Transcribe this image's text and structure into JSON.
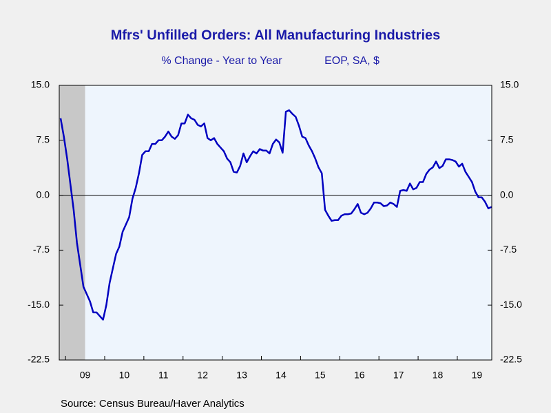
{
  "chart_data": {
    "type": "line",
    "title": "Mfrs' Unfilled Orders: All Manufacturing Industries",
    "subtitle": "% Change - Year to Year",
    "units": "EOP, SA, $",
    "source": "Source:  Census Bureau/Haver Analytics",
    "color": "#0000c0",
    "x": [
      2008.875,
      2008.958,
      2009.042,
      2009.125,
      2009.208,
      2009.292,
      2009.375,
      2009.458,
      2009.542,
      2009.625,
      2009.708,
      2009.792,
      2009.875,
      2009.958,
      2010.042,
      2010.125,
      2010.208,
      2010.292,
      2010.375,
      2010.458,
      2010.542,
      2010.625,
      2010.708,
      2010.792,
      2010.875,
      2010.958,
      2011.042,
      2011.125,
      2011.208,
      2011.292,
      2011.375,
      2011.458,
      2011.542,
      2011.625,
      2011.708,
      2011.792,
      2011.875,
      2011.958,
      2012.042,
      2012.125,
      2012.208,
      2012.292,
      2012.375,
      2012.458,
      2012.542,
      2012.625,
      2012.708,
      2012.792,
      2012.875,
      2012.958,
      2013.042,
      2013.125,
      2013.208,
      2013.292,
      2013.375,
      2013.458,
      2013.542,
      2013.625,
      2013.708,
      2013.792,
      2013.875,
      2013.958,
      2014.042,
      2014.125,
      2014.208,
      2014.292,
      2014.375,
      2014.458,
      2014.542,
      2014.625,
      2014.708,
      2014.792,
      2014.875,
      2014.958,
      2015.042,
      2015.125,
      2015.208,
      2015.292,
      2015.375,
      2015.458,
      2015.542,
      2015.625,
      2015.708,
      2015.792,
      2015.875,
      2015.958,
      2016.042,
      2016.125,
      2016.208,
      2016.292,
      2016.375,
      2016.458,
      2016.542,
      2016.625,
      2016.708,
      2016.792,
      2016.875,
      2016.958,
      2017.042,
      2017.125,
      2017.208,
      2017.292,
      2017.375,
      2017.458,
      2017.542,
      2017.625,
      2017.708,
      2017.792,
      2017.875,
      2017.958,
      2018.042,
      2018.125,
      2018.208,
      2018.292,
      2018.375,
      2018.458,
      2018.542,
      2018.625,
      2018.708,
      2018.792,
      2018.875,
      2018.958,
      2019.042,
      2019.125,
      2019.208,
      2019.292,
      2019.375,
      2019.458,
      2019.542,
      2019.625,
      2019.708,
      2019.792,
      2019.875
    ],
    "values": [
      10.5,
      8.0,
      5,
      1.5,
      -2,
      -6.5,
      -9.5,
      -12.5,
      -13.5,
      -14.5,
      -16,
      -16,
      -16.5,
      -17,
      -15,
      -12,
      -10,
      -8,
      -7,
      -5,
      -4,
      -3,
      -0.5,
      1,
      3,
      5.5,
      6,
      6,
      7,
      7,
      7.5,
      7.5,
      8,
      8.7,
      8,
      7.7,
      8.2,
      9.8,
      9.8,
      11,
      10.5,
      10.3,
      9.6,
      9.4,
      9.8,
      7.8,
      7.5,
      7.8,
      7,
      6.5,
      6,
      5,
      4.5,
      3.2,
      3.1,
      4,
      5.7,
      4.5,
      5.3,
      6,
      5.7,
      6.3,
      6.1,
      6.1,
      5.7,
      7,
      7.6,
      7.2,
      5.8,
      11.4,
      11.6,
      11.1,
      10.7,
      9.5,
      8,
      7.8,
      6.8,
      6,
      5,
      3.8,
      3,
      -2,
      -2.8,
      -3.5,
      -3.4,
      -3.4,
      -2.8,
      -2.6,
      -2.6,
      -2.5,
      -1.9,
      -1.2,
      -2.4,
      -2.6,
      -2.4,
      -1.8,
      -1.0,
      -1.0,
      -1.1,
      -1.5,
      -1.4,
      -1.0,
      -1.2,
      -1.6,
      0.6,
      0.7,
      0.6,
      1.6,
      0.8,
      1.0,
      1.8,
      1.8,
      2.9,
      3.5,
      3.8,
      4.6,
      3.7,
      4.0,
      4.9,
      4.9,
      4.8,
      4.6,
      3.9,
      4.3,
      3.2,
      2.5,
      1.8,
      0.5,
      -0.3,
      -0.3,
      -0.9,
      -1.8,
      -1.6
    ],
    "xlim": [
      2008.84,
      2019.88
    ],
    "xticks": [
      {
        "value": 2009,
        "label": "09"
      },
      {
        "value": 2010,
        "label": "10"
      },
      {
        "value": 2011,
        "label": "11"
      },
      {
        "value": 2012,
        "label": "12"
      },
      {
        "value": 2013,
        "label": "13"
      },
      {
        "value": 2014,
        "label": "14"
      },
      {
        "value": 2015,
        "label": "15"
      },
      {
        "value": 2016,
        "label": "16"
      },
      {
        "value": 2017,
        "label": "17"
      },
      {
        "value": 2018,
        "label": "18"
      },
      {
        "value": 2019,
        "label": "19"
      }
    ],
    "ylim": [
      -22.5,
      15
    ],
    "yticks": [
      {
        "value": 15,
        "label": "15.0"
      },
      {
        "value": 7.5,
        "label": "7.5"
      },
      {
        "value": 0,
        "label": "0.0"
      },
      {
        "value": -7.5,
        "label": "-7.5"
      },
      {
        "value": -15,
        "label": "-15.0"
      },
      {
        "value": -22.5,
        "label": "-22.5"
      }
    ],
    "y2lim": [
      -22.5,
      15
    ],
    "y2ticks": [
      {
        "value": 15,
        "label": "15.0"
      },
      {
        "value": 7.5,
        "label": "7.5"
      },
      {
        "value": 0,
        "label": "0.0"
      },
      {
        "value": -7.5,
        "label": "-7.5"
      },
      {
        "value": -15,
        "label": "-15.0"
      },
      {
        "value": -22.5,
        "label": "-22.5"
      }
    ],
    "shaded_x": [
      2008.84,
      2009.5
    ],
    "shade_color": "#c8c8c8",
    "zero_line": true
  }
}
